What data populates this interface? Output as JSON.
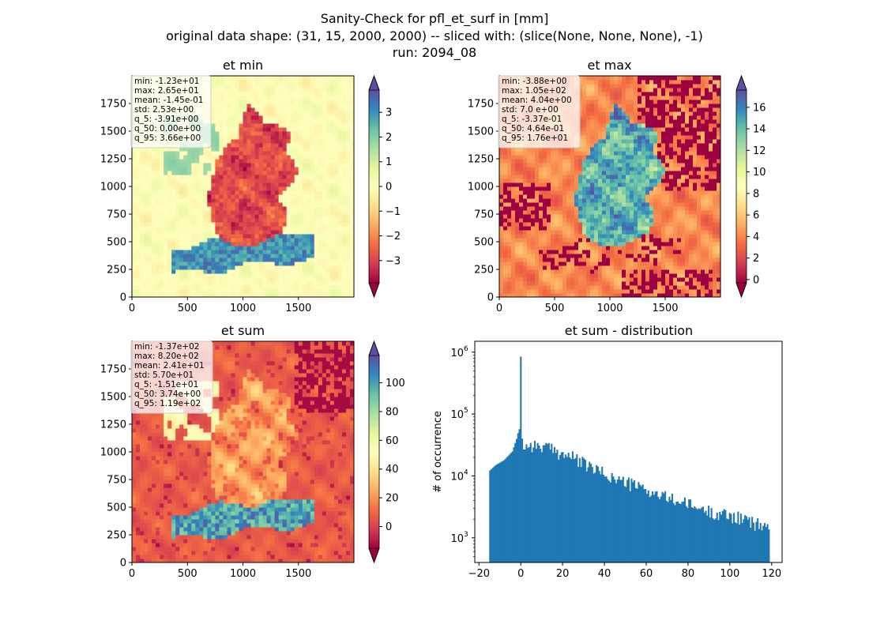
{
  "figure": {
    "title_lines": [
      "Sanity-Check for pfl_et_surf in [mm]",
      "original data shape: (31, 15, 2000, 2000) -- sliced with: (slice(None, None, None), -1)",
      "run: 2094_08"
    ]
  },
  "colormap": "Spectral",
  "colors": {
    "hist_bar": "#1f77b4"
  },
  "chart_data": [
    {
      "type": "heatmap",
      "title": "et min",
      "xlim": [
        0,
        2000
      ],
      "ylim": [
        0,
        2000
      ],
      "xticks": [
        "0",
        "500",
        "1000",
        "1500"
      ],
      "yticks": [
        "0",
        "250",
        "500",
        "750",
        "1000",
        "1250",
        "1500",
        "1750"
      ],
      "colorbar": {
        "vmin": -3.9,
        "vmax": 3.9,
        "extend": "both",
        "ticks": [
          "−3",
          "−2",
          "−1",
          "0",
          "1",
          "2",
          "3"
        ],
        "tick_values": [
          -3,
          -2,
          -1,
          0,
          1,
          2,
          3
        ]
      },
      "stats": [
        "min: -1.23e+01",
        "max: 2.65e+01",
        "mean: -1.45e-01",
        "std: 2.53e+00",
        "q_5: -3.91e+00",
        "q_50: 0.00e+00",
        "q_95: 3.66e+00"
      ]
    },
    {
      "type": "heatmap",
      "title": "et max",
      "xlim": [
        0,
        2000
      ],
      "ylim": [
        0,
        2000
      ],
      "xticks": [
        "0",
        "500",
        "1000",
        "1500"
      ],
      "yticks": [
        "0",
        "250",
        "500",
        "750",
        "1000",
        "1250",
        "1500",
        "1750"
      ],
      "colorbar": {
        "vmin": -0.3,
        "vmax": 17.6,
        "extend": "both",
        "ticks": [
          "0",
          "2",
          "4",
          "6",
          "8",
          "10",
          "12",
          "14",
          "16"
        ],
        "tick_values": [
          0,
          2,
          4,
          6,
          8,
          10,
          12,
          14,
          16
        ]
      },
      "stats": [
        "min: -3.88e+00",
        "max: 1.05e+02",
        "mean: 4.04e+00",
        "std: 7.0 e+00",
        "q_5: -3.37e-01",
        "q_50: 4.64e-01",
        "q_95: 1.76e+01"
      ]
    },
    {
      "type": "heatmap",
      "title": "et sum",
      "xlim": [
        0,
        2000
      ],
      "ylim": [
        0,
        2000
      ],
      "xticks": [
        "0",
        "500",
        "1000",
        "1500"
      ],
      "yticks": [
        "0",
        "250",
        "500",
        "750",
        "1000",
        "1250",
        "1500",
        "1750"
      ],
      "colorbar": {
        "vmin": -15.1,
        "vmax": 119,
        "extend": "both",
        "ticks": [
          "0",
          "20",
          "40",
          "60",
          "80",
          "100"
        ],
        "tick_values": [
          0,
          20,
          40,
          60,
          80,
          100
        ]
      },
      "stats": [
        "min: -1.37e+02",
        "max: 8.20e+02",
        "mean: 2.41e+01",
        "std: 5.70e+01",
        "q_5: -1.51e+01",
        "q_50: 3.74e+00",
        "q_95: 1.19e+02"
      ]
    },
    {
      "type": "bar",
      "title": "et sum - distribution",
      "ylabel": "# of occurrence",
      "yscale": "log",
      "xlim": [
        -22,
        125
      ],
      "ylim": [
        400,
        1500000
      ],
      "xticks": [
        "−20",
        "0",
        "20",
        "40",
        "60",
        "80",
        "100",
        "120"
      ],
      "xtick_values": [
        -20,
        0,
        20,
        40,
        60,
        80,
        100,
        120
      ],
      "yticks": [
        "10",
        "10",
        "10",
        "10"
      ],
      "ytick_exponents": [
        "3",
        "4",
        "5",
        "6"
      ],
      "ytick_values": [
        1000,
        10000,
        100000,
        1000000
      ],
      "bins": {
        "start": -15.1,
        "end": 119,
        "count": 200
      },
      "profile": [
        [
          -15.1,
          12000
        ],
        [
          -12,
          15000
        ],
        [
          -8,
          18000
        ],
        [
          -4,
          25000
        ],
        [
          -2,
          40000
        ],
        [
          -1,
          55000
        ],
        [
          -0.3,
          60000
        ],
        [
          0,
          850000
        ],
        [
          0.4,
          50000
        ],
        [
          1,
          30000
        ],
        [
          5,
          32000
        ],
        [
          10,
          30000
        ],
        [
          15,
          27000
        ],
        [
          20,
          23000
        ],
        [
          25,
          20000
        ],
        [
          30,
          16000
        ],
        [
          35,
          13000
        ],
        [
          40,
          11000
        ],
        [
          45,
          9000
        ],
        [
          50,
          8000
        ],
        [
          55,
          7000
        ],
        [
          60,
          6000
        ],
        [
          65,
          5000
        ],
        [
          70,
          4500
        ],
        [
          75,
          4000
        ],
        [
          80,
          3500
        ],
        [
          85,
          3000
        ],
        [
          90,
          2700
        ],
        [
          95,
          2500
        ],
        [
          100,
          2300
        ],
        [
          105,
          2100
        ],
        [
          110,
          1800
        ],
        [
          115,
          1600
        ],
        [
          119,
          1500
        ]
      ]
    }
  ]
}
